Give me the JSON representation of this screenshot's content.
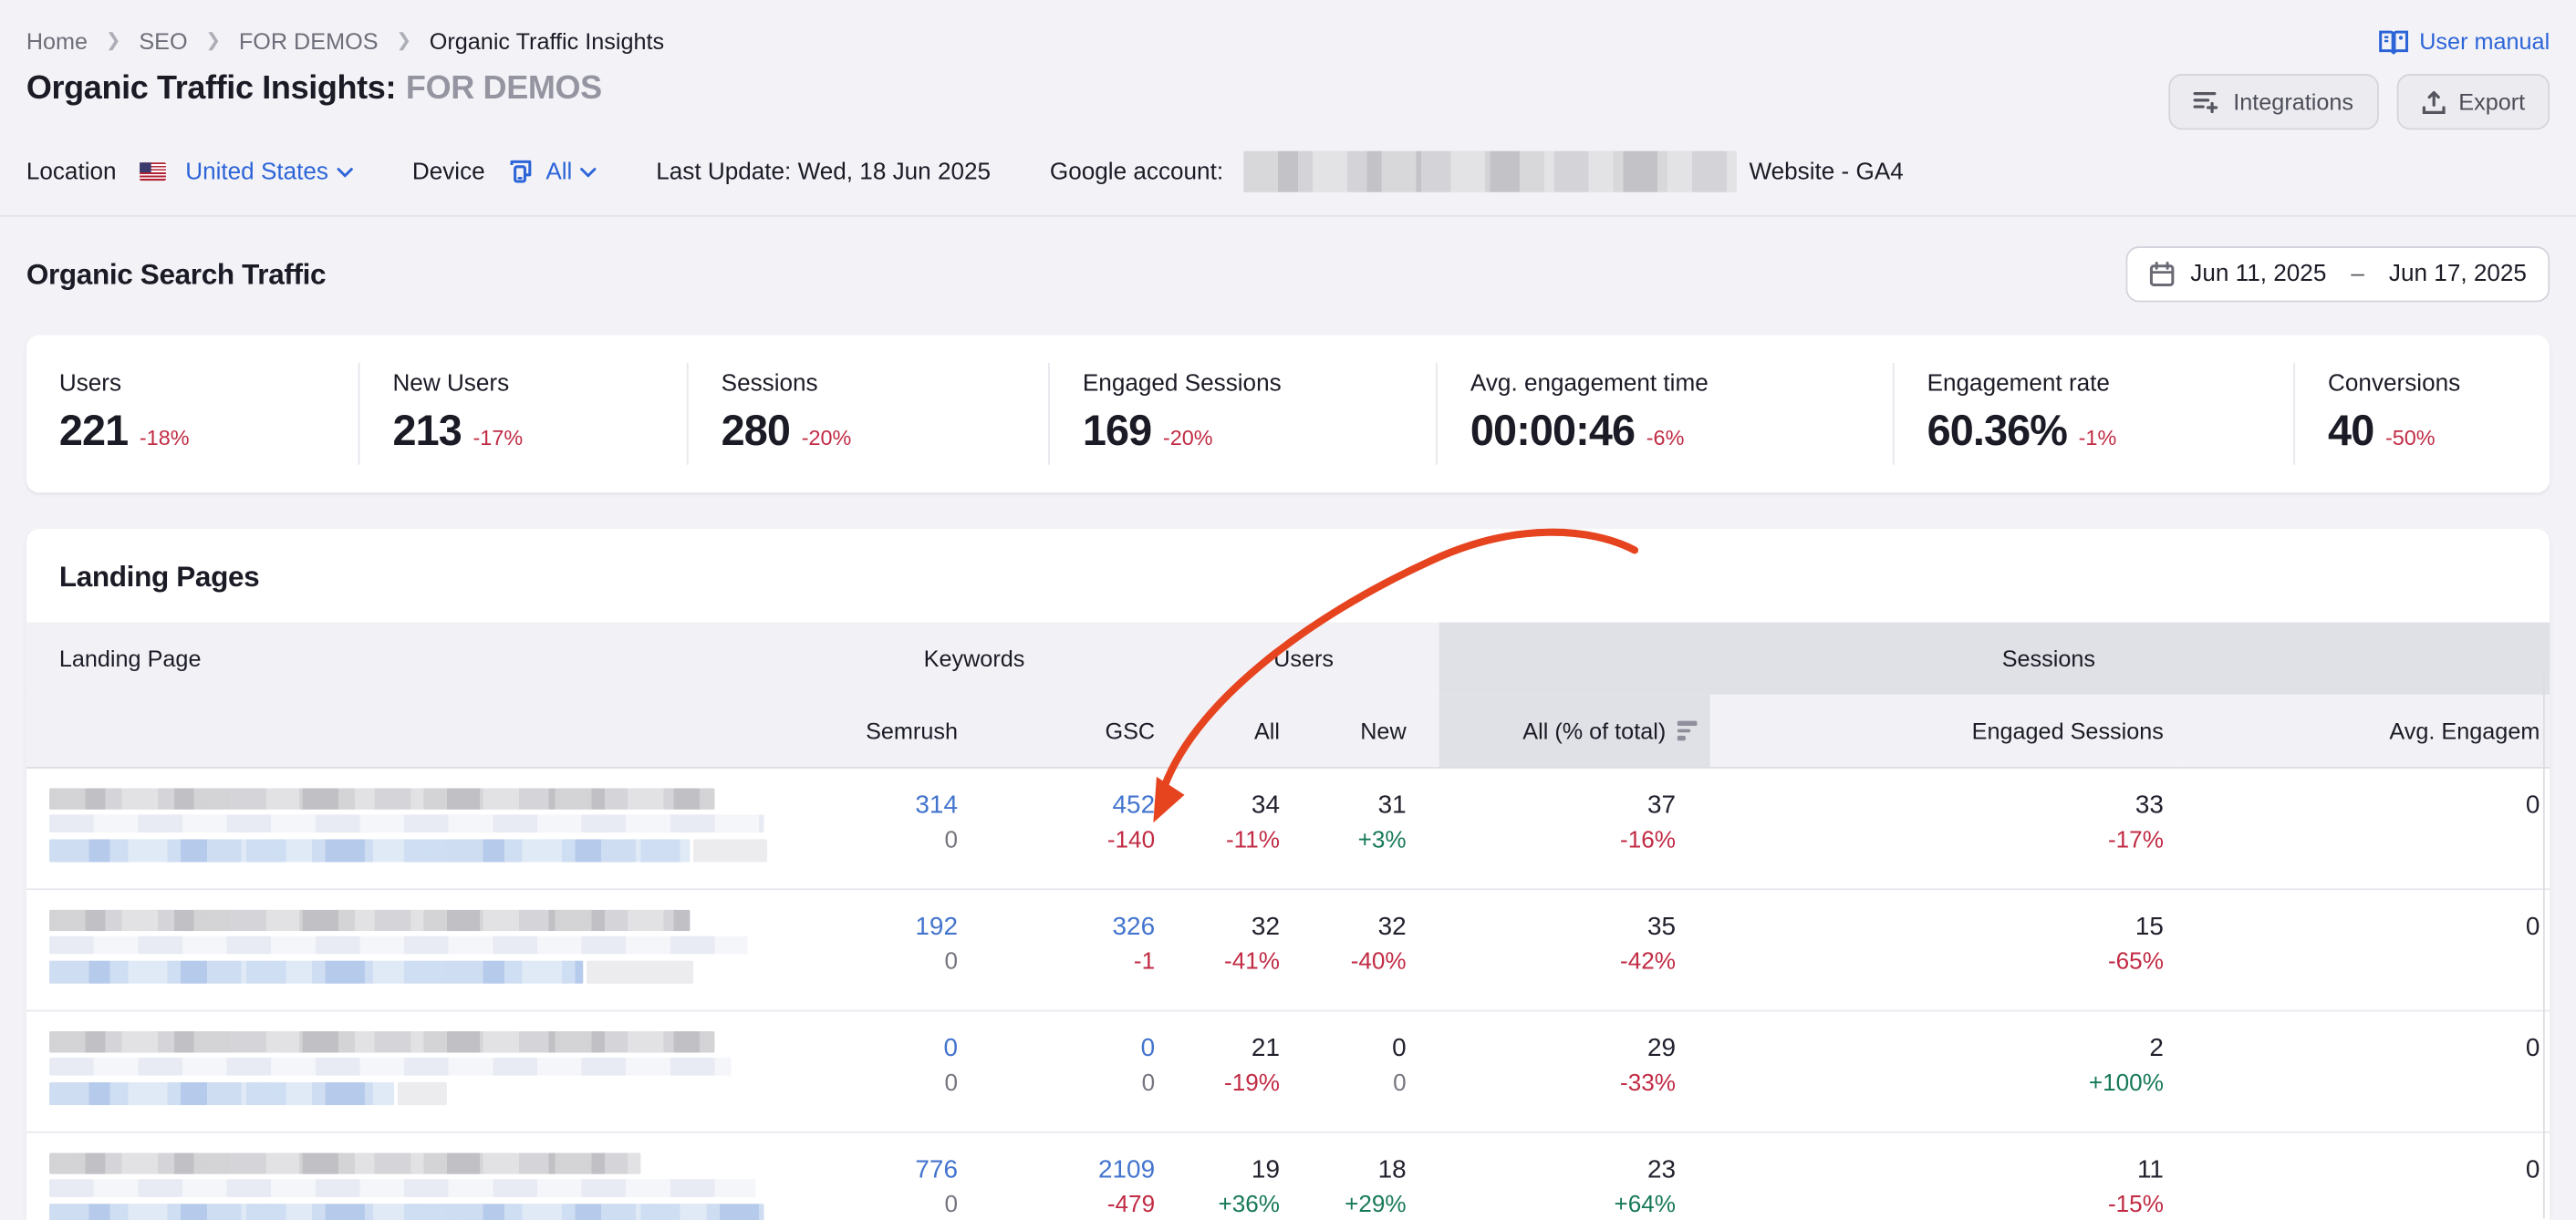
{
  "breadcrumb": {
    "items": [
      "Home",
      "SEO",
      "FOR DEMOS",
      "Organic Traffic Insights"
    ]
  },
  "user_manual_label": "User manual",
  "header": {
    "title": "Organic Traffic Insights:",
    "project": "FOR DEMOS",
    "integrations_label": "Integrations",
    "export_label": "Export"
  },
  "filters": {
    "location_label": "Location",
    "location_value": "United States",
    "device_label": "Device",
    "device_value": "All",
    "last_update": "Last Update: Wed, 18 Jun 2025",
    "google_account_label": "Google account:",
    "google_account_value_redacted": "",
    "property_label": "Website - GA4"
  },
  "section": {
    "title": "Organic Search Traffic",
    "date_from": "Jun 11, 2025",
    "date_sep": "–",
    "date_to": "Jun 17, 2025"
  },
  "metrics": [
    {
      "label": "Users",
      "value": "221",
      "delta": "-18%"
    },
    {
      "label": "New Users",
      "value": "213",
      "delta": "-17%"
    },
    {
      "label": "Sessions",
      "value": "280",
      "delta": "-20%"
    },
    {
      "label": "Engaged Sessions",
      "value": "169",
      "delta": "-20%"
    },
    {
      "label": "Avg. engagement time",
      "value": "00:00:46",
      "delta": "-6%"
    },
    {
      "label": "Engagement rate",
      "value": "60.36%",
      "delta": "-1%"
    },
    {
      "label": "Conversions",
      "value": "40",
      "delta": "-50%"
    }
  ],
  "table": {
    "title": "Landing Pages",
    "groups": {
      "landing": "Landing Page",
      "keywords": "Keywords",
      "users": "Users",
      "sessions": "Sessions"
    },
    "sub_headers": {
      "semrush": "Semrush",
      "gsc": "GSC",
      "users_all": "All",
      "users_new": "New",
      "sessions_all": "All (% of total)",
      "engaged": "Engaged Sessions",
      "avg_engagement": "Avg. Engagem"
    },
    "rows": [
      {
        "semrush": [
          "314",
          "0"
        ],
        "gsc": [
          "452",
          "-140"
        ],
        "users_all": [
          "34",
          "-11%"
        ],
        "users_new": [
          "31",
          "+3%"
        ],
        "sessions_all": [
          "37",
          "-16%"
        ],
        "engaged": [
          "33",
          "-17%"
        ],
        "avg": [
          "0",
          ""
        ],
        "blur": {
          "gray": 405,
          "faint": 435,
          "blue": 390,
          "tail": 45
        }
      },
      {
        "semrush": [
          "192",
          "0"
        ],
        "gsc": [
          "326",
          "-1"
        ],
        "users_all": [
          "32",
          "-41%"
        ],
        "users_new": [
          "32",
          "-40%"
        ],
        "sessions_all": [
          "35",
          "-42%"
        ],
        "engaged": [
          "15",
          "-65%"
        ],
        "avg": [
          "0",
          ""
        ],
        "blur": {
          "gray": 390,
          "faint": 425,
          "blue": 325,
          "tail": 65
        }
      },
      {
        "semrush": [
          "0",
          "0"
        ],
        "gsc": [
          "0",
          "0"
        ],
        "users_all": [
          "21",
          "-19%"
        ],
        "users_new": [
          "0",
          "0"
        ],
        "sessions_all": [
          "29",
          "-33%"
        ],
        "engaged": [
          "2",
          "+100%"
        ],
        "avg": [
          "0",
          ""
        ],
        "blur": {
          "gray": 405,
          "faint": 415,
          "blue": 210,
          "tail": 30
        }
      },
      {
        "semrush": [
          "776",
          "0"
        ],
        "gsc": [
          "2109",
          "-479"
        ],
        "users_all": [
          "19",
          "+36%"
        ],
        "users_new": [
          "18",
          "+29%"
        ],
        "sessions_all": [
          "23",
          "+64%"
        ],
        "engaged": [
          "11",
          "-15%"
        ],
        "avg": [
          "0",
          ""
        ],
        "blur": {
          "gray": 360,
          "faint": 430,
          "blue": 435,
          "tail": 0
        }
      }
    ]
  },
  "colors": {
    "accent_blue": "#2c64d8",
    "table_link_blue": "#4374ce",
    "negative_red": "#c12b44",
    "positive_green": "#17795a",
    "annotation_arrow": "#e6431f"
  }
}
